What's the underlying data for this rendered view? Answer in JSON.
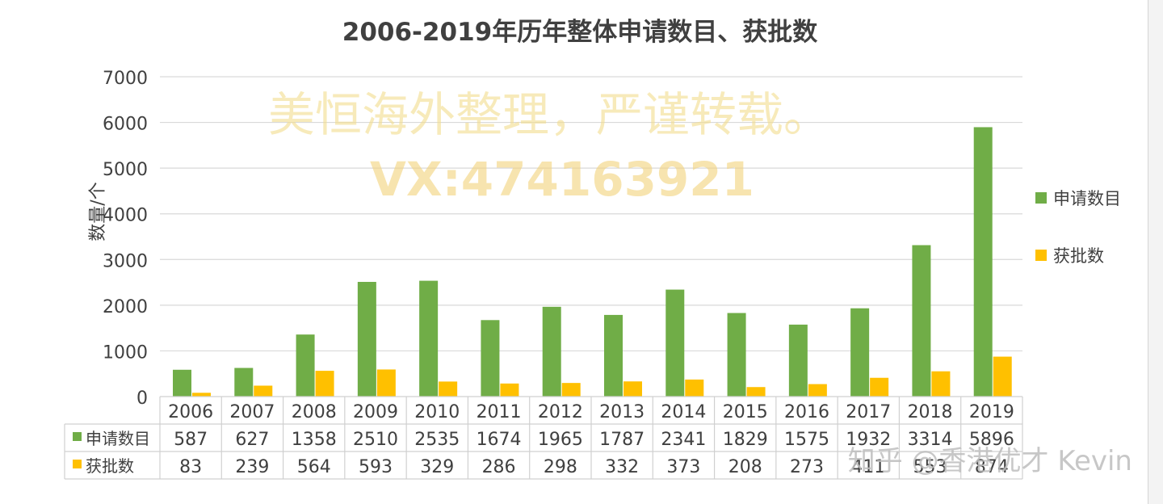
{
  "chart_data": {
    "type": "bar",
    "title": "2006-2019年历年整体申请数目、获批数",
    "ylabel": "数量/个",
    "xlabel": "",
    "ylim": [
      0,
      7000
    ],
    "yticks": [
      0,
      1000,
      2000,
      3000,
      4000,
      5000,
      6000,
      7000
    ],
    "grid": true,
    "legend_position": "right",
    "categories": [
      "2006",
      "2007",
      "2008",
      "2009",
      "2010",
      "2011",
      "2012",
      "2013",
      "2014",
      "2015",
      "2016",
      "2017",
      "2018",
      "2019"
    ],
    "series": [
      {
        "name": "申请数目",
        "color": "#70ad47",
        "values": [
          587,
          627,
          1358,
          2510,
          2535,
          1674,
          1965,
          1787,
          2341,
          1829,
          1575,
          1932,
          3314,
          5896
        ]
      },
      {
        "name": "获批数",
        "color": "#ffc000",
        "values": [
          83,
          239,
          564,
          593,
          329,
          286,
          298,
          332,
          373,
          208,
          273,
          411,
          553,
          874
        ]
      }
    ],
    "data_table": true
  },
  "watermarks": {
    "line1": "美恒海外整理，严谨转载。",
    "line2": "VX:474163921",
    "corner": "知乎 @香港优才 Kevin"
  }
}
